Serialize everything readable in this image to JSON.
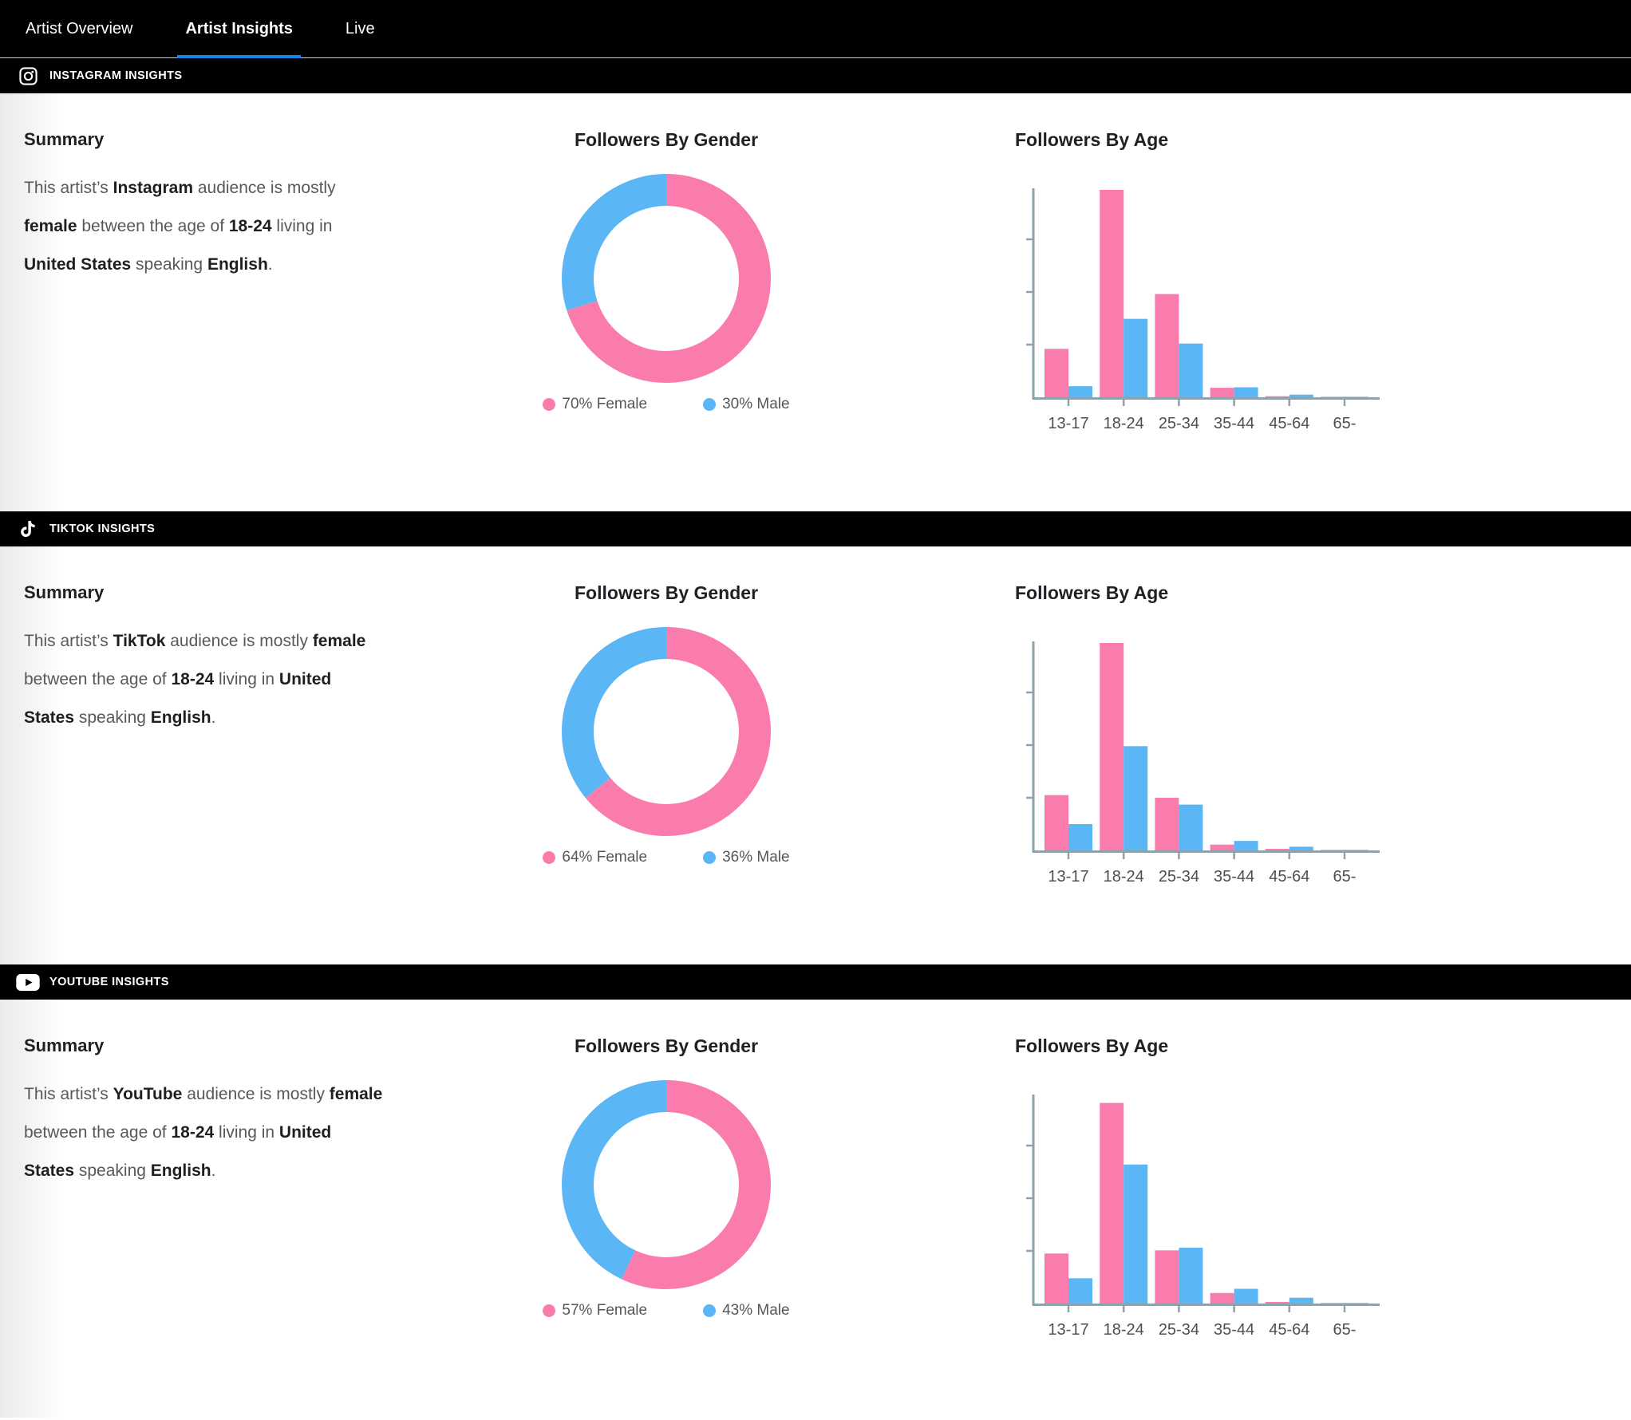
{
  "nav": {
    "tabs": [
      {
        "label": "Artist Overview",
        "active": false
      },
      {
        "label": "Artist Insights",
        "active": true
      },
      {
        "label": "Live",
        "active": false
      }
    ]
  },
  "colors": {
    "female": "#F97CAD",
    "male": "#5BB6F5",
    "active_tab_underline": "#1285E8",
    "axis": "#8FA2AC",
    "header_bar_background": "#000000"
  },
  "sections": [
    {
      "id": "instagram",
      "icon": "instagram-icon",
      "header": "INSTAGRAM INSIGHTS",
      "summary_heading": "Summary",
      "summary_text": "This artist’s Instagram audience is mostly female between the age of 18-24 living in United States speaking English.",
      "summary_lines": [
        [
          {
            "text": "This artist’s "
          },
          {
            "text": "Instagram",
            "bold": true
          },
          {
            "text": " audience is mostly"
          }
        ],
        [
          {
            "text": "female",
            "bold": true
          },
          {
            "text": " between the age of "
          },
          {
            "text": "18-24",
            "bold": true
          },
          {
            "text": " living in"
          }
        ],
        [
          {
            "text": "United States",
            "bold": true
          },
          {
            "text": " speaking "
          },
          {
            "text": "English",
            "bold": true
          },
          {
            "text": "."
          }
        ]
      ]
    },
    {
      "id": "tiktok",
      "icon": "tiktok-icon",
      "header": "TIKTOK INSIGHTS",
      "summary_heading": "Summary",
      "summary_text": "This artist’s TikTok audience is mostly female between the age of 18-24 living in United States speaking English.",
      "summary_lines": [
        [
          {
            "text": "This artist’s "
          },
          {
            "text": "TikTok",
            "bold": true
          },
          {
            "text": " audience is mostly "
          },
          {
            "text": "female",
            "bold": true
          }
        ],
        [
          {
            "text": "between the age of "
          },
          {
            "text": "18-24",
            "bold": true
          },
          {
            "text": " living in "
          },
          {
            "text": "United",
            "bold": true
          }
        ],
        [
          {
            "text": "States",
            "bold": true
          },
          {
            "text": " speaking "
          },
          {
            "text": "English",
            "bold": true
          },
          {
            "text": "."
          }
        ]
      ]
    },
    {
      "id": "youtube",
      "icon": "youtube-icon",
      "header": "YOUTUBE INSIGHTS",
      "summary_heading": "Summary",
      "summary_text": "This artist’s YouTube audience is mostly female between the age of 18-24 living in United States speaking English.",
      "summary_lines": [
        [
          {
            "text": "This artist’s "
          },
          {
            "text": "YouTube",
            "bold": true
          },
          {
            "text": " audience is mostly "
          },
          {
            "text": "female",
            "bold": true
          }
        ],
        [
          {
            "text": "between the age of "
          },
          {
            "text": "18-24",
            "bold": true
          },
          {
            "text": " living in "
          },
          {
            "text": "United",
            "bold": true
          }
        ],
        [
          {
            "text": "States",
            "bold": true
          },
          {
            "text": " speaking "
          },
          {
            "text": "English",
            "bold": true
          },
          {
            "text": "."
          }
        ]
      ]
    }
  ],
  "chart_data": [
    {
      "type": "pie",
      "section": "instagram",
      "title": "Followers By Gender",
      "labels": [
        "Female",
        "Male"
      ],
      "values": [
        70,
        30
      ],
      "legend": [
        "70% Female",
        "30% Male"
      ],
      "colors": [
        "#F97CAD",
        "#5BB6F5"
      ],
      "legend_position": "bottom",
      "donut": true
    },
    {
      "type": "bar",
      "section": "instagram",
      "title": "Followers By Age",
      "categories": [
        "13-17",
        "18-24",
        "25-34",
        "35-44",
        "45-64",
        "65-"
      ],
      "series": [
        {
          "name": "Female",
          "color": "#F97CAD",
          "values": [
            9.2,
            39.4,
            19.6,
            1.8,
            0.2,
            0.1
          ]
        },
        {
          "name": "Male",
          "color": "#5BB6F5",
          "values": [
            2.1,
            14.9,
            10.2,
            1.9,
            0.5,
            0.1
          ]
        }
      ],
      "xlabel": "",
      "ylabel": "",
      "ylim": [
        0,
        40
      ],
      "ytick_interval": 10,
      "y_labels_visible": false,
      "grid": false
    },
    {
      "type": "pie",
      "section": "tiktok",
      "title": "Followers By Gender",
      "labels": [
        "Female",
        "Male"
      ],
      "values": [
        64,
        36
      ],
      "legend": [
        "64% Female",
        "36% Male"
      ],
      "colors": [
        "#F97CAD",
        "#5BB6F5"
      ],
      "legend_position": "bottom",
      "donut": true
    },
    {
      "type": "bar",
      "section": "tiktok",
      "title": "Followers By Age",
      "categories": [
        "13-17",
        "18-24",
        "25-34",
        "35-44",
        "45-64",
        "65-"
      ],
      "series": [
        {
          "name": "Female",
          "color": "#F97CAD",
          "values": [
            10.5,
            39.4,
            10.0,
            1.1,
            0.3,
            0.1
          ]
        },
        {
          "name": "Male",
          "color": "#5BB6F5",
          "values": [
            5.0,
            19.8,
            8.7,
            1.8,
            0.7,
            0.1
          ]
        }
      ],
      "xlabel": "",
      "ylabel": "",
      "ylim": [
        0,
        40
      ],
      "ytick_interval": 10,
      "y_labels_visible": false,
      "grid": false
    },
    {
      "type": "pie",
      "section": "youtube",
      "title": "Followers By Gender",
      "labels": [
        "Female",
        "Male"
      ],
      "values": [
        57,
        43
      ],
      "legend": [
        "57% Female",
        "43% Male"
      ],
      "colors": [
        "#F97CAD",
        "#5BB6F5"
      ],
      "legend_position": "bottom",
      "donut": true
    },
    {
      "type": "bar",
      "section": "youtube",
      "title": "Followers By Age",
      "categories": [
        "13-17",
        "18-24",
        "25-34",
        "35-44",
        "45-64",
        "65-"
      ],
      "series": [
        {
          "name": "Female",
          "color": "#F97CAD",
          "values": [
            9.5,
            38.1,
            10.1,
            2.0,
            0.3,
            0.1
          ]
        },
        {
          "name": "Male",
          "color": "#5BB6F5",
          "values": [
            4.8,
            26.4,
            10.6,
            2.8,
            1.1,
            0.1
          ]
        }
      ],
      "xlabel": "",
      "ylabel": "",
      "ylim": [
        0,
        40
      ],
      "ytick_interval": 10,
      "y_labels_visible": false,
      "grid": false
    }
  ]
}
